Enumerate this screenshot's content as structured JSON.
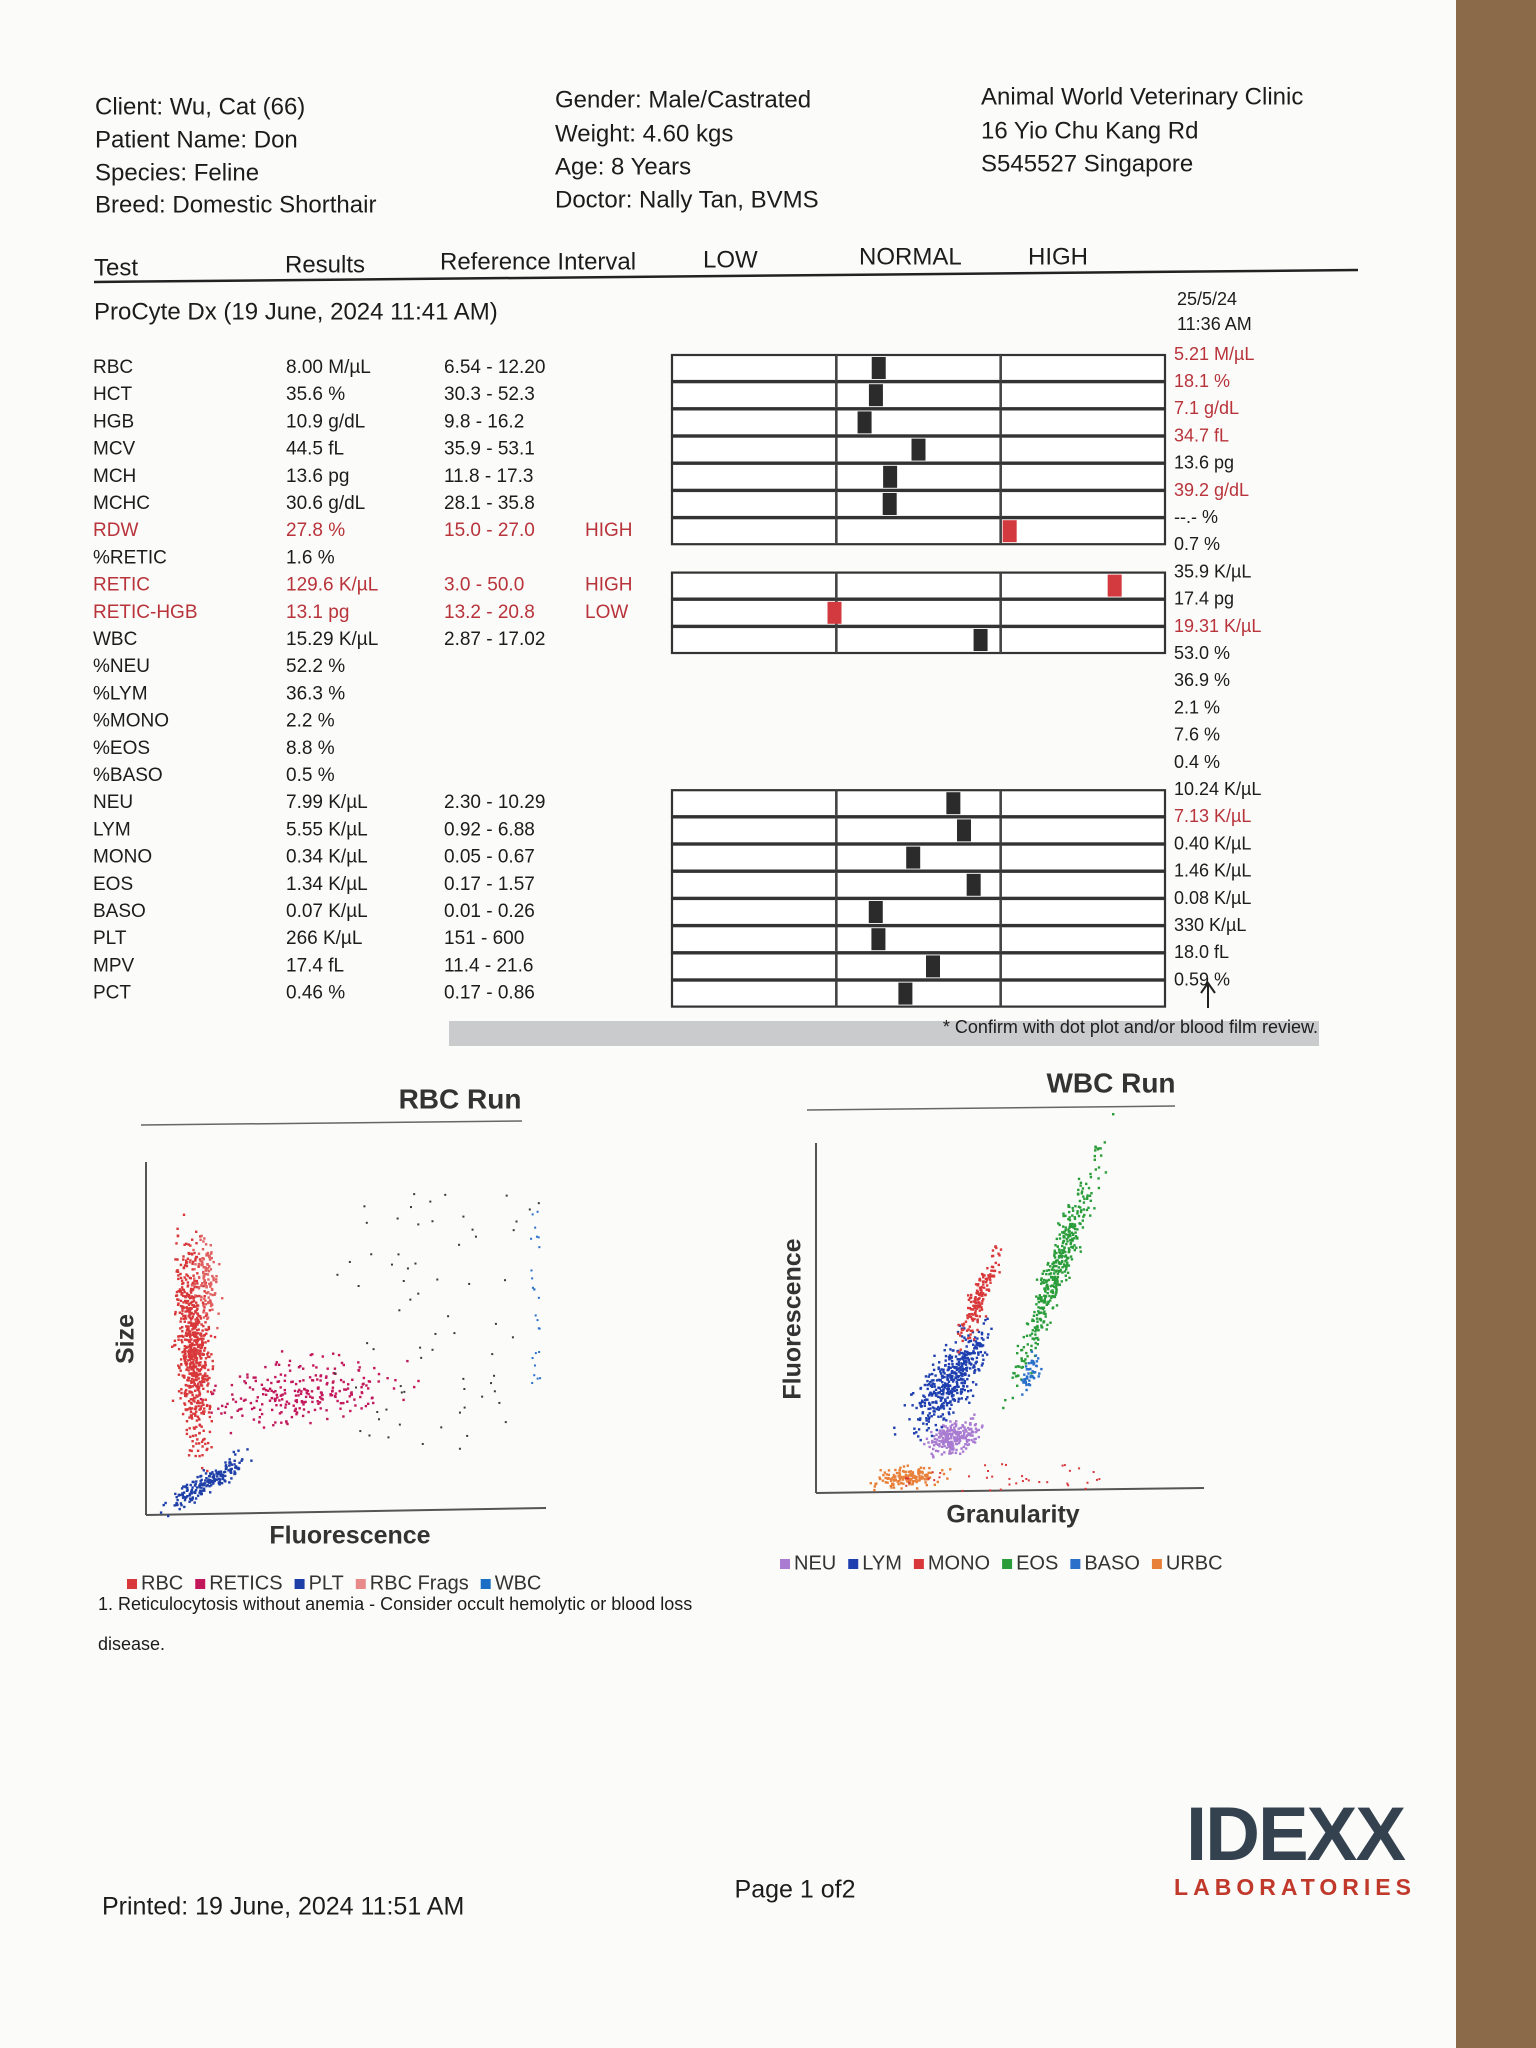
{
  "header": {
    "client": "Client: Wu, Cat (66)",
    "patient": "Patient Name: Don",
    "species": "Species: Feline",
    "breed": "Breed: Domestic Shorthair",
    "gender": "Gender: Male/Castrated",
    "weight": "Weight: 4.60 kgs",
    "age": "Age: 8 Years",
    "doctor": "Doctor: Nally Tan, BVMS",
    "clinic": [
      "Animal World Veterinary Clinic",
      "16 Yio Chu Kang Rd",
      "S545527 Singapore"
    ]
  },
  "table": {
    "columns": [
      "Test",
      "Results",
      "Reference Interval",
      "LOW",
      "NORMAL",
      "HIGH"
    ],
    "run": "ProCyte Dx (19 June, 2024 11:41 AM)",
    "previous_date": "25/5/24",
    "previous_time": "11:36 AM",
    "rows": [
      {
        "test": "RBC",
        "result": "8.00 M/µL",
        "reference": "6.54 - 12.20",
        "previous": "5.21 M/µL",
        "previous_color": "#b8333a"
      },
      {
        "test": "HCT",
        "result": "35.6 %",
        "reference": "30.3 - 52.3",
        "previous": "18.1 %",
        "previous_color": "#b8333a"
      },
      {
        "test": "HGB",
        "result": "10.9 g/dL",
        "reference": "9.8 - 16.2",
        "previous": "7.1 g/dL",
        "previous_color": "#b8333a"
      },
      {
        "test": "MCV",
        "result": "44.5 fL",
        "reference": "35.9 - 53.1",
        "previous": "34.7 fL",
        "previous_color": "#b8333a"
      },
      {
        "test": "MCH",
        "result": "13.6 pg",
        "reference": "11.8 - 17.3",
        "previous": "13.6 pg"
      },
      {
        "test": "MCHC",
        "result": "30.6 g/dL",
        "reference": "28.1 - 35.8",
        "previous": "39.2 g/dL",
        "previous_color": "#b8333a"
      },
      {
        "test": "RDW",
        "result": "27.8 %",
        "reference": "15.0 - 27.0",
        "flag": "HIGH",
        "previous": "--.- %"
      },
      {
        "test": "%RETIC",
        "result": "1.6 %",
        "previous": "0.7 %"
      },
      {
        "test": "RETIC",
        "result": "129.6 K/µL",
        "reference": "3.0 - 50.0",
        "flag": "HIGH",
        "previous": "35.9 K/µL"
      },
      {
        "test": "RETIC-HGB",
        "result": "13.1 pg",
        "reference": "13.2 - 20.8",
        "flag": "LOW",
        "previous": "17.4 pg"
      },
      {
        "test": "WBC",
        "result": "15.29 K/µL",
        "reference": "2.87 - 17.02",
        "previous": "19.31 K/µL",
        "previous_color": "#b8333a"
      },
      {
        "test": "%NEU",
        "result": "52.2 %",
        "previous": "53.0 %"
      },
      {
        "test": "%LYM",
        "result": "36.3 %",
        "previous": "36.9 %"
      },
      {
        "test": "%MONO",
        "result": "2.2 %",
        "previous": "2.1 %"
      },
      {
        "test": "%EOS",
        "result": "8.8 %",
        "previous": "7.6 %"
      },
      {
        "test": "%BASO",
        "result": "0.5 %",
        "previous": "0.4 %"
      },
      {
        "test": "NEU",
        "result": "7.99 K/µL",
        "reference": "2.30 - 10.29",
        "previous": "10.24 K/µL"
      },
      {
        "test": "LYM",
        "result": "5.55 K/µL",
        "reference": "0.92 - 6.88",
        "previous": "7.13 K/µL",
        "previous_color": "#b8333a"
      },
      {
        "test": "MONO",
        "result": "0.34 K/µL",
        "reference": "0.05 - 0.67",
        "previous": "0.40 K/µL"
      },
      {
        "test": "EOS",
        "result": "1.34 K/µL",
        "reference": "0.17 - 1.57",
        "previous": "1.46 K/µL"
      },
      {
        "test": "BASO",
        "result": "0.07 K/µL",
        "reference": "0.01 - 0.26",
        "previous": "0.08 K/µL"
      },
      {
        "test": "PLT",
        "result": "266 K/µL",
        "reference": "151 - 600",
        "previous": "330 K/µL"
      },
      {
        "test": "MPV",
        "result": "17.4 fL",
        "reference": "11.4 - 21.6",
        "previous": "18.0 fL"
      },
      {
        "test": "PCT",
        "result": "0.46 %",
        "reference": "0.17 - 0.86",
        "previous": "0.59 %"
      }
    ],
    "flag_color": "#b8333a",
    "confirm": "* Confirm with dot plot and/or blood film review."
  },
  "rbc_run": {
    "title": "RBC Run",
    "y_label": "Size",
    "x_label": "Fluorescence",
    "legend": [
      {
        "name": "RBC",
        "color": "#d9383a"
      },
      {
        "name": "RETICS",
        "color": "#c2185b"
      },
      {
        "name": "PLT",
        "color": "#1f3fa8"
      },
      {
        "name": "RBC Frags",
        "color": "#e88a8a"
      },
      {
        "name": "WBC",
        "color": "#1a6fc4"
      }
    ],
    "note": [
      "1. Reticulocytosis without anemia - Consider occult hemolytic or blood loss",
      "disease."
    ]
  },
  "wbc_run": {
    "title": "WBC Run",
    "y_label": "Fluorescence",
    "x_label": "Granularity",
    "legend": [
      {
        "name": "NEU",
        "color": "#a97bd1"
      },
      {
        "name": "LYM",
        "color": "#1f3fb0"
      },
      {
        "name": "MONO",
        "color": "#d9383a"
      },
      {
        "name": "EOS",
        "color": "#2a9d3a"
      },
      {
        "name": "BASO",
        "color": "#2a6fc9"
      },
      {
        "name": "URBC",
        "color": "#e8803a"
      }
    ]
  },
  "footer": {
    "printed": "Printed: 19 June, 2024 11:51 AM",
    "page": "Page 1 of2",
    "logo": "IDEXX",
    "logo_sub": "LABORATORIES"
  }
}
